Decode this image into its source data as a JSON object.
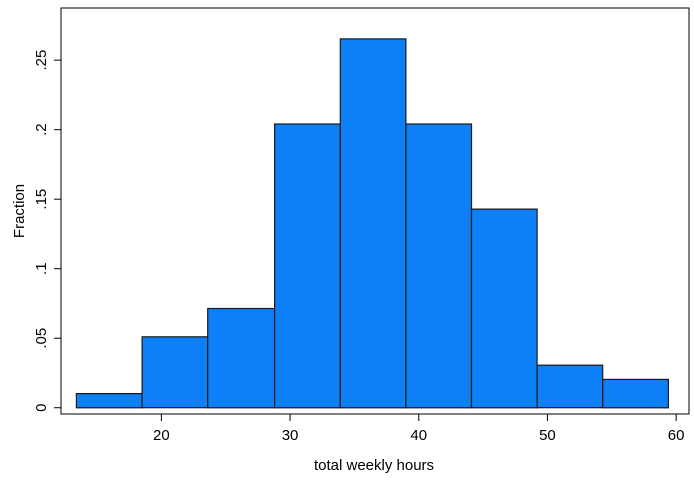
{
  "chart_data": {
    "type": "bar",
    "title": "",
    "xlabel": "total weekly hours",
    "ylabel": "Fraction",
    "bins": [
      {
        "start": 13.4,
        "end": 18.5,
        "value": 0.0102
      },
      {
        "start": 18.5,
        "end": 23.6,
        "value": 0.051
      },
      {
        "start": 23.6,
        "end": 28.8,
        "value": 0.0714
      },
      {
        "start": 28.8,
        "end": 33.9,
        "value": 0.2041
      },
      {
        "start": 33.9,
        "end": 39.0,
        "value": 0.2653
      },
      {
        "start": 39.0,
        "end": 44.1,
        "value": 0.2041
      },
      {
        "start": 44.1,
        "end": 49.2,
        "value": 0.1429
      },
      {
        "start": 49.2,
        "end": 54.3,
        "value": 0.0306
      },
      {
        "start": 54.3,
        "end": 59.4,
        "value": 0.0204
      }
    ],
    "xticks": [
      {
        "value": 20,
        "label": "20"
      },
      {
        "value": 30,
        "label": "30"
      },
      {
        "value": 40,
        "label": "40"
      },
      {
        "value": 50,
        "label": "50"
      },
      {
        "value": 60,
        "label": "60"
      }
    ],
    "yticks": [
      {
        "value": 0,
        "label": "0"
      },
      {
        "value": 0.05,
        "label": ".05"
      },
      {
        "value": 0.1,
        "label": ".1"
      },
      {
        "value": 0.15,
        "label": ".15"
      },
      {
        "value": 0.2,
        "label": ".2"
      },
      {
        "value": 0.25,
        "label": ".25"
      }
    ],
    "xlim": [
      12.2,
      61
    ],
    "ylim": [
      -0.0045,
      0.2875
    ],
    "grid": false,
    "legend": "none",
    "colors": {
      "bar_fill": "#0d7ff7",
      "bar_stroke": "#1a1a1a",
      "axis": "#000000"
    }
  }
}
